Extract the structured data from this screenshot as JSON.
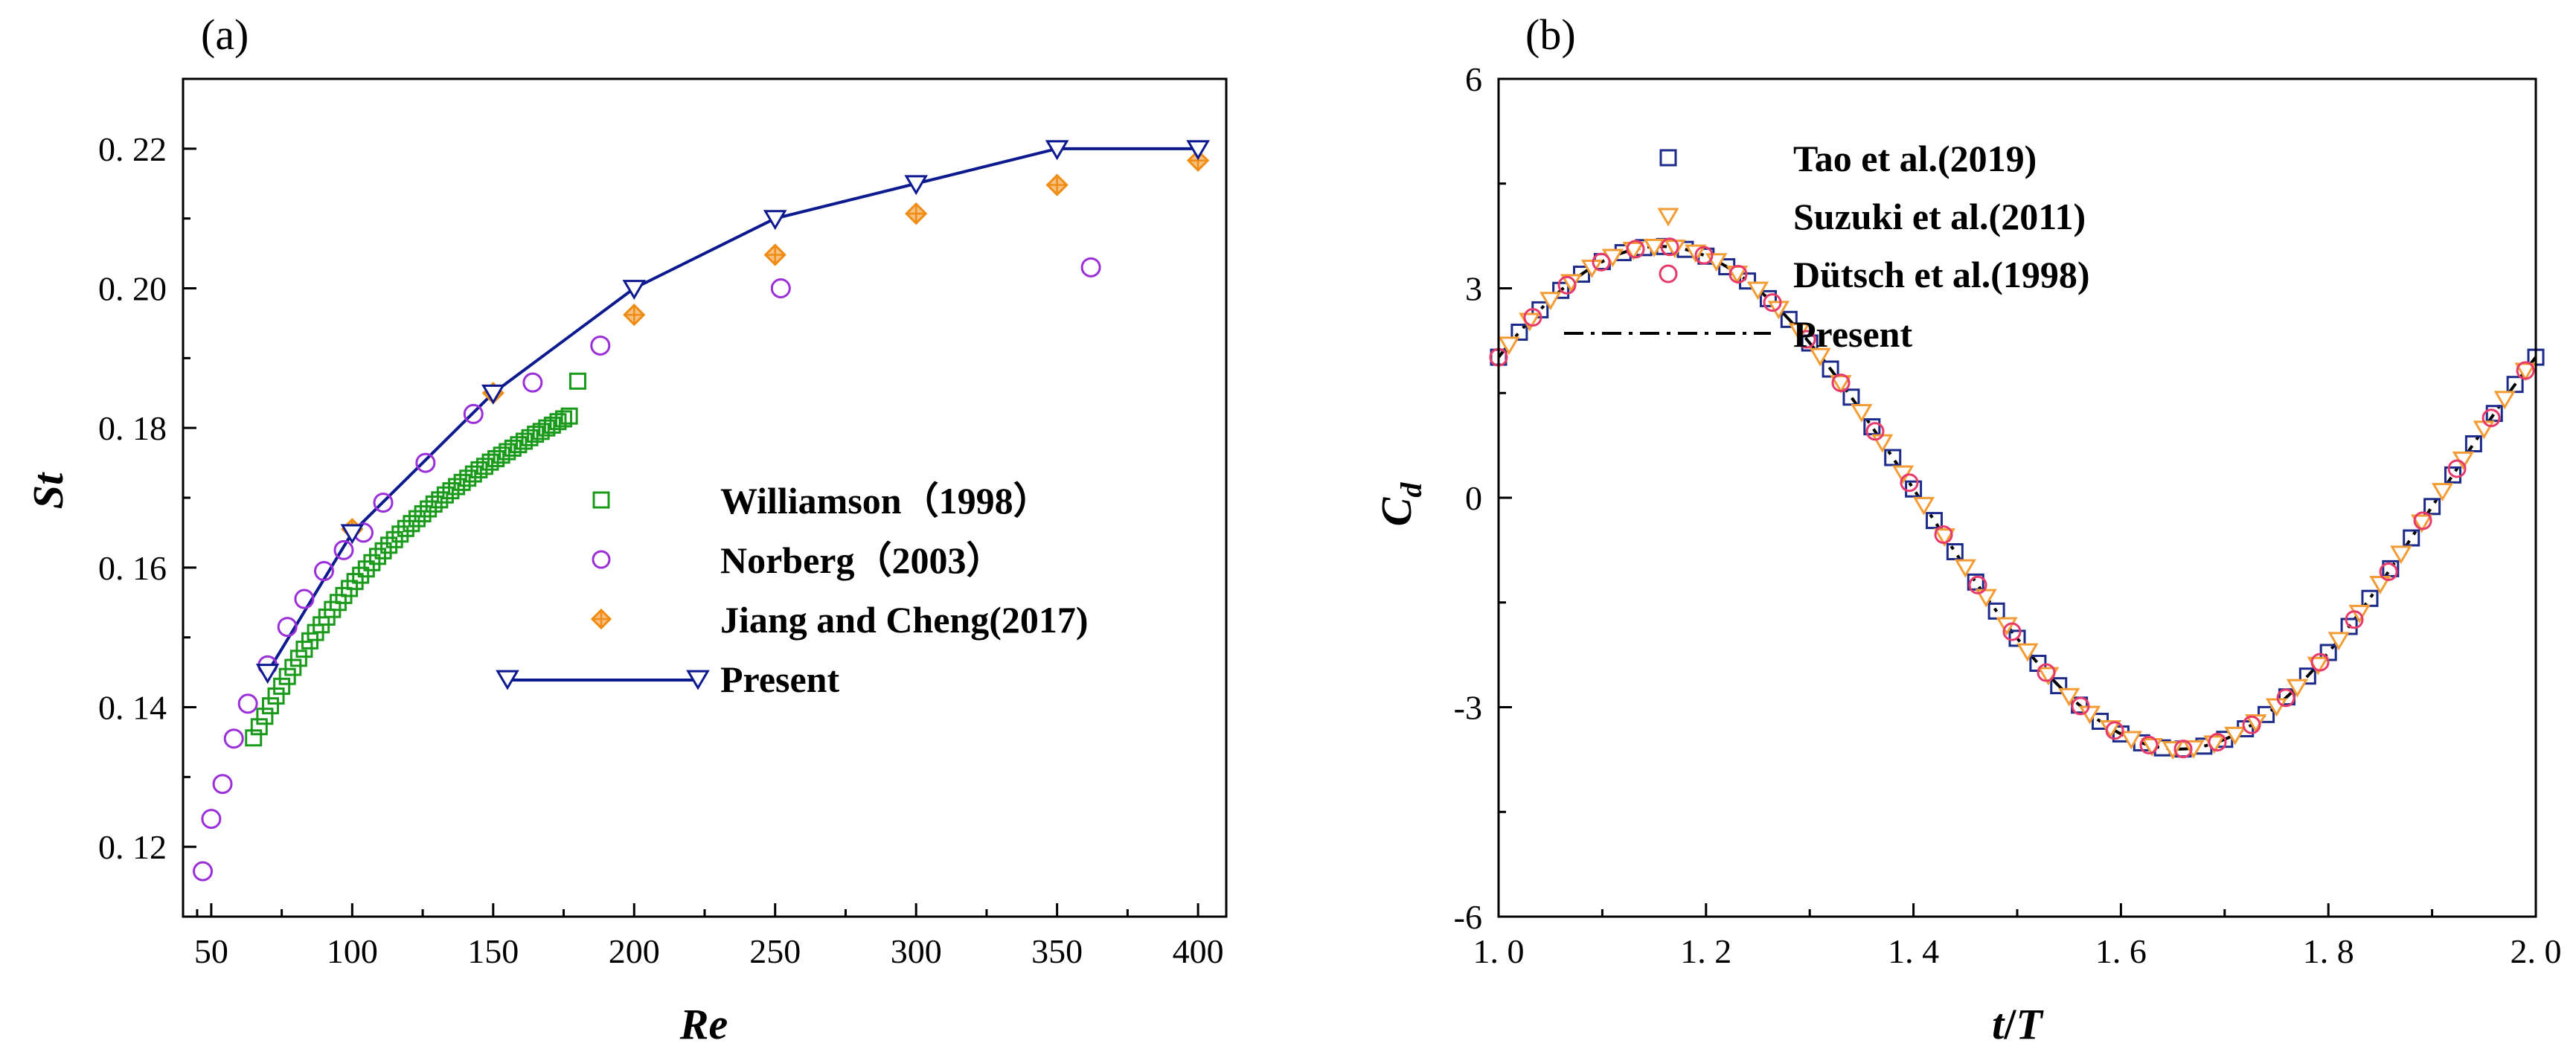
{
  "colors": {
    "williamson": "#1a9a1a",
    "norberg": "#9b30d9",
    "jiang": "#f08c14",
    "present_a": "#0d1a8f",
    "tao": "#1c2a8a",
    "suzuki": "#f39c34",
    "dutsch": "#e83a6a",
    "present_b": "#000000"
  },
  "chart_data": [
    {
      "panel": "(a)",
      "type": "scatter",
      "xlabel": "Re",
      "ylabel": "St",
      "xlim": [
        40,
        410
      ],
      "ylim": [
        0.11,
        0.23
      ],
      "xticks": [
        "50",
        "100",
        "150",
        "200",
        "250",
        "300",
        "350",
        "400"
      ],
      "yticks": [
        "0. 12",
        "0. 14",
        "0. 16",
        "0. 18",
        "0. 20",
        "0. 22"
      ],
      "legend_position": "center-right",
      "series": [
        {
          "name": "Williamson（1998）",
          "marker": "square",
          "x": [
            65,
            67,
            69,
            71,
            73,
            75,
            77,
            79,
            81,
            83,
            85,
            87,
            89,
            91,
            93,
            95,
            97,
            99,
            101,
            103,
            105,
            107,
            109,
            111,
            113,
            115,
            117,
            119,
            121,
            123,
            125,
            127,
            129,
            131,
            133,
            135,
            137,
            139,
            141,
            143,
            145,
            147,
            149,
            151,
            153,
            155,
            157,
            159,
            161,
            163,
            165,
            167,
            169,
            171,
            173,
            175,
            177,
            180
          ],
          "y": [
            0.1356,
            0.1372,
            0.1387,
            0.1402,
            0.1416,
            0.143,
            0.1444,
            0.1457,
            0.147,
            0.1483,
            0.1495,
            0.1507,
            0.1518,
            0.1529,
            0.154,
            0.155,
            0.156,
            0.157,
            0.158,
            0.1589,
            0.1598,
            0.1607,
            0.1616,
            0.1624,
            0.1632,
            0.164,
            0.1648,
            0.1656,
            0.1663,
            0.167,
            0.1677,
            0.1684,
            0.1691,
            0.1697,
            0.1704,
            0.171,
            0.1716,
            0.1722,
            0.1728,
            0.1734,
            0.174,
            0.1745,
            0.1751,
            0.1756,
            0.1761,
            0.1766,
            0.1771,
            0.1776,
            0.1781,
            0.1786,
            0.1791,
            0.1795,
            0.18,
            0.1804,
            0.1809,
            0.1813,
            0.1817,
            0.1867
          ]
        },
        {
          "name": "Norberg（2003）",
          "marker": "circle",
          "x": [
            47,
            50,
            54,
            58,
            63,
            70,
            77,
            83,
            90,
            97,
            104,
            111,
            126,
            143,
            164,
            188,
            252,
            362
          ],
          "y": [
            0.1165,
            0.124,
            0.129,
            0.1355,
            0.1405,
            0.146,
            0.1515,
            0.1555,
            0.1595,
            0.1625,
            0.165,
            0.1693,
            0.175,
            0.182,
            0.1865,
            0.1918,
            0.2,
            0.203
          ]
        },
        {
          "name": "Jiang and Cheng(2017)",
          "marker": "diamond-cross",
          "x": [
            100,
            150,
            200,
            250,
            300,
            350,
            400
          ],
          "y": [
            0.1655,
            0.185,
            0.1962,
            0.2048,
            0.2107,
            0.2148,
            0.2183
          ]
        },
        {
          "name": "Present",
          "marker": "triangle-down",
          "line": true,
          "x": [
            70,
            100,
            150,
            200,
            250,
            300,
            350,
            400
          ],
          "y": [
            0.145,
            0.165,
            0.185,
            0.2,
            0.21,
            0.215,
            0.22,
            0.22
          ]
        }
      ]
    },
    {
      "panel": "(b)",
      "type": "line",
      "xlabel": "t/T",
      "ylabel": "C_d",
      "xlabel_parts": [
        "t",
        "/",
        "T"
      ],
      "ylabel_parts": [
        "C",
        "d"
      ],
      "xlim": [
        1.0,
        2.0
      ],
      "ylim": [
        -6,
        6
      ],
      "xticks": [
        "1. 0",
        "1. 2",
        "1. 4",
        "1. 6",
        "1. 8",
        "2. 0"
      ],
      "yticks": [
        "-6",
        "-3",
        "0",
        "3",
        "6"
      ],
      "legend_position": "top-left",
      "curve_model": {
        "offset": 0.0,
        "amplitude": 3.6,
        "phase_deg": 34
      },
      "series": [
        {
          "name": "Tao et al.(2019)",
          "marker": "square",
          "x_start": 1.0,
          "x_step": 0.02,
          "count": 51
        },
        {
          "name": "Suzuki et al.(2011)",
          "marker": "triangle-down",
          "x_start": 1.01,
          "x_step": 0.02,
          "count": 50
        },
        {
          "name": "Dütsch et al.(1998)",
          "marker": "circle",
          "x_start": 1.0,
          "x_step": 0.033,
          "count": 31
        },
        {
          "name": "Present",
          "marker": "none",
          "line": "dash-dot"
        }
      ]
    }
  ]
}
